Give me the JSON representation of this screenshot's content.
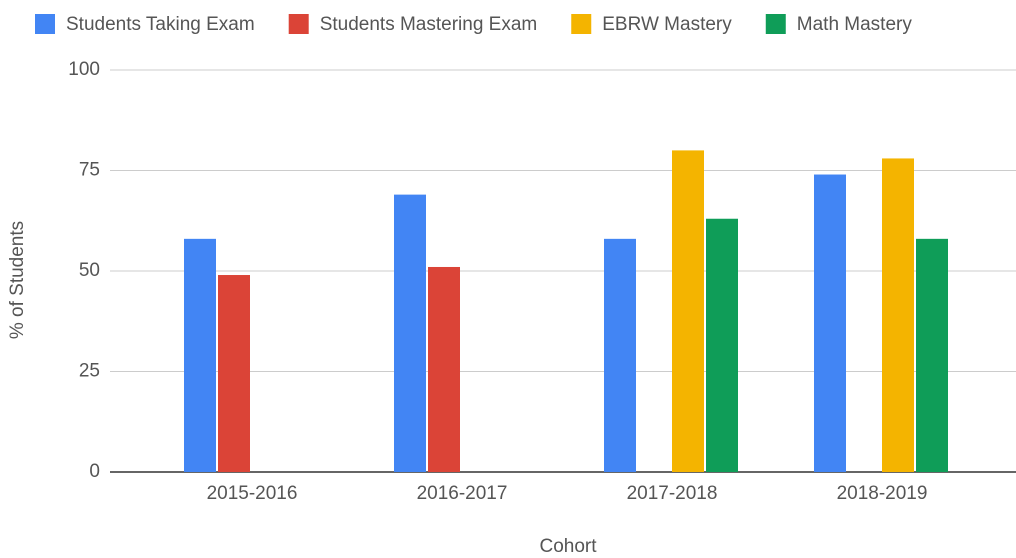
{
  "chart_data": {
    "type": "bar",
    "categories": [
      "2015-2016",
      "2016-2017",
      "2017-2018",
      "2018-2019"
    ],
    "series": [
      {
        "name": "Students Taking Exam",
        "color": "#4285f4",
        "values": [
          58,
          69,
          58,
          74
        ]
      },
      {
        "name": "Students Mastering Exam",
        "color": "#db4437",
        "values": [
          49,
          51,
          null,
          null
        ]
      },
      {
        "name": "EBRW Mastery",
        "color": "#f4b400",
        "values": [
          null,
          null,
          80,
          78
        ]
      },
      {
        "name": "Math Mastery",
        "color": "#0f9d58",
        "values": [
          null,
          null,
          63,
          58
        ]
      }
    ],
    "x_label": "Cohort",
    "y_label": "% of Students",
    "ylim": [
      0,
      100
    ],
    "yticks": [
      0,
      25,
      50,
      75,
      100
    ],
    "grid": true,
    "legend": "top"
  }
}
